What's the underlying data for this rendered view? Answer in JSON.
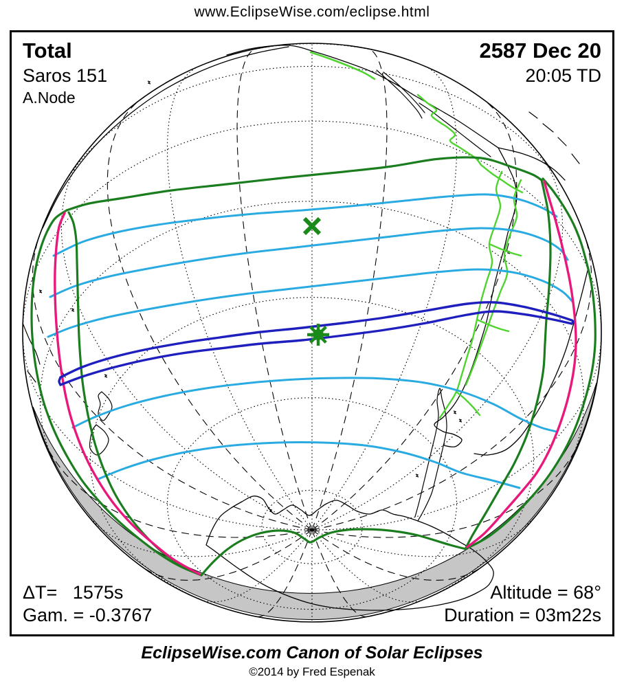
{
  "header": {
    "url": "www.EclipseWise.com/eclipse.html"
  },
  "panel": {
    "type_label": "Total",
    "saros_label": "Saros 151",
    "node_label": "A.Node",
    "date_label": "2587 Dec 20",
    "time_label": "20:05 TD",
    "delta_t_label": "ΔT=   1575s",
    "gamma_label": "Gam. = -0.3767",
    "altitude_label": "Altitude = 68°",
    "duration_label": "Duration = 03m22s"
  },
  "footer": {
    "title": "EclipseWise.com Canon of Solar Eclipses",
    "copyright": "©2014 by Fred Espenak"
  },
  "map": {
    "projection": "orthographic south-pacific view",
    "colors": {
      "penumbra_limit_green": "#1a7d1e",
      "magnitude_cyan": "#29abe2",
      "umbra_blue": "#1f1fbe",
      "riseset_magenta": "#e8187d",
      "coast_black": "#000000",
      "border_green": "#4fd32e",
      "night_gray": "#c6c6c6",
      "globe_outline": "#000000",
      "marker_green": "#1a8a1a",
      "background": "#ffffff"
    },
    "markers": [
      {
        "name": "greatest-duration-x-marker",
        "symbol": "x"
      },
      {
        "name": "greatest-eclipse-star-marker",
        "symbol": "asterisk"
      }
    ]
  }
}
